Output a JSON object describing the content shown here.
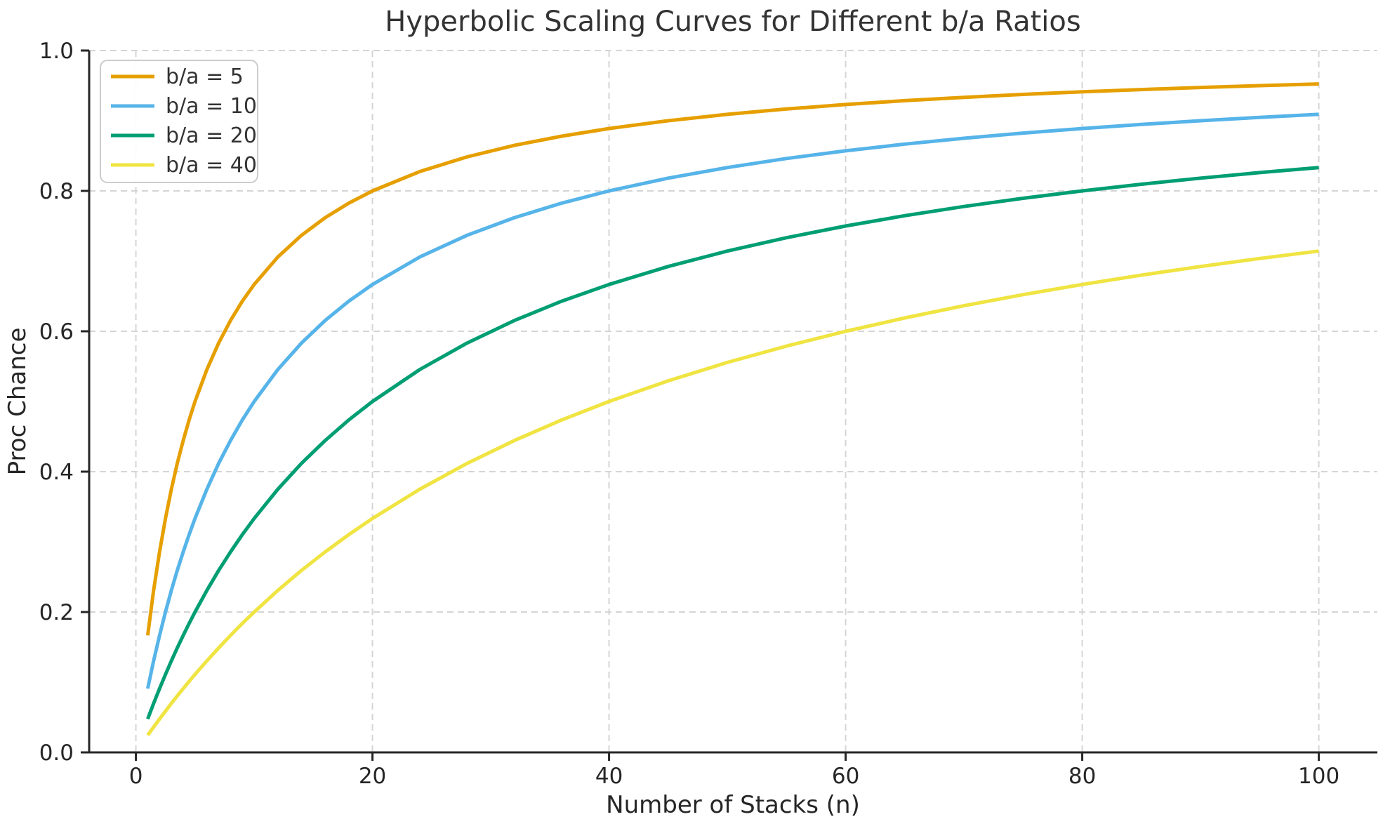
{
  "chart_data": {
    "type": "line",
    "title": "Hyperbolic Scaling Curves for Different b/a Ratios",
    "xlabel": "Number of Stacks (n)",
    "ylabel": "Proc Chance",
    "xlim": [
      -3.95,
      104.95
    ],
    "ylim": [
      0,
      1.0
    ],
    "x_ticks": [
      0,
      20,
      40,
      60,
      80,
      100
    ],
    "x_tick_labels": [
      "0",
      "20",
      "40",
      "60",
      "80",
      "100"
    ],
    "y_ticks": [
      0.0,
      0.2,
      0.4,
      0.6,
      0.8,
      1.0
    ],
    "y_tick_labels": [
      "0.0",
      "0.2",
      "0.4",
      "0.6",
      "0.8",
      "1.0"
    ],
    "grid": true,
    "grid_style": "dashed",
    "legend_position": "upper left",
    "x": [
      1,
      1.5,
      2,
      2.5,
      3,
      3.5,
      4,
      4.5,
      5,
      6,
      7,
      8,
      9,
      10,
      12,
      14,
      16,
      18,
      20,
      24,
      28,
      32,
      36,
      40,
      45,
      50,
      55,
      60,
      65,
      70,
      75,
      80,
      85,
      90,
      95,
      100
    ],
    "series": [
      {
        "name": "b/a = 5",
        "color": "#E69F00",
        "values": [
          0.1667,
          0.2308,
          0.2857,
          0.3333,
          0.375,
          0.4118,
          0.4444,
          0.4737,
          0.5,
          0.5455,
          0.5833,
          0.6154,
          0.6429,
          0.6667,
          0.7059,
          0.7368,
          0.7619,
          0.7826,
          0.8,
          0.8276,
          0.8485,
          0.8649,
          0.878,
          0.8889,
          0.9,
          0.9091,
          0.9167,
          0.9231,
          0.9286,
          0.9333,
          0.9375,
          0.9412,
          0.9444,
          0.9474,
          0.95,
          0.9524
        ]
      },
      {
        "name": "b/a = 10",
        "color": "#56B4E9",
        "values": [
          0.0909,
          0.1304,
          0.1667,
          0.2,
          0.2308,
          0.2593,
          0.2857,
          0.3103,
          0.3333,
          0.375,
          0.4118,
          0.4444,
          0.4737,
          0.5,
          0.5455,
          0.5833,
          0.6154,
          0.6429,
          0.6667,
          0.7059,
          0.7368,
          0.7619,
          0.7826,
          0.8,
          0.8182,
          0.8333,
          0.8462,
          0.8571,
          0.8667,
          0.875,
          0.8824,
          0.8889,
          0.8947,
          0.9,
          0.9048,
          0.9091
        ]
      },
      {
        "name": "b/a = 20",
        "color": "#009E73",
        "values": [
          0.0476,
          0.0698,
          0.0909,
          0.1111,
          0.1304,
          0.1489,
          0.1667,
          0.1837,
          0.2,
          0.2308,
          0.2593,
          0.2857,
          0.3103,
          0.3333,
          0.375,
          0.4118,
          0.4444,
          0.4737,
          0.5,
          0.5455,
          0.5833,
          0.6154,
          0.6429,
          0.6667,
          0.6923,
          0.7143,
          0.7333,
          0.75,
          0.7647,
          0.7778,
          0.7895,
          0.8,
          0.8095,
          0.8182,
          0.8261,
          0.8333
        ]
      },
      {
        "name": "b/a = 40",
        "color": "#F0E442",
        "values": [
          0.0244,
          0.0361,
          0.0476,
          0.0588,
          0.0698,
          0.0805,
          0.0909,
          0.1011,
          0.1111,
          0.1304,
          0.1489,
          0.1667,
          0.1837,
          0.2,
          0.2308,
          0.2593,
          0.2857,
          0.3103,
          0.3333,
          0.375,
          0.4118,
          0.4444,
          0.4737,
          0.5,
          0.5294,
          0.5556,
          0.5789,
          0.6,
          0.619,
          0.6364,
          0.6522,
          0.6667,
          0.68,
          0.6923,
          0.7037,
          0.7143
        ]
      }
    ],
    "style": {
      "grid_color": "#d5d5d5",
      "axis_color": "#262626",
      "text_color": "#333333",
      "legend_edge_color": "#cccccc",
      "legend_face_color": "#ffffff",
      "background_color": "#ffffff"
    }
  }
}
